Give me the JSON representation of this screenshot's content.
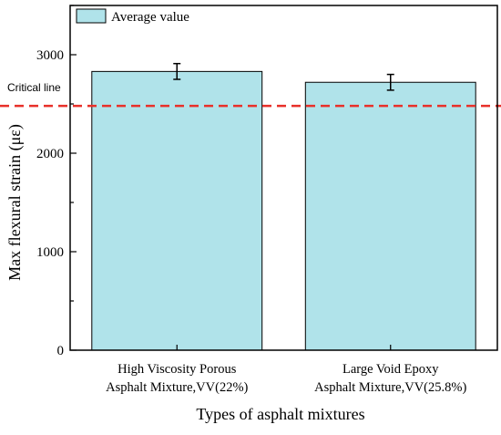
{
  "chart_data": {
    "type": "bar",
    "categories": [
      [
        "High Viscosity Porous",
        "Asphalt Mixture,VV(22%)"
      ],
      [
        "Large Void Epoxy",
        "Asphalt Mixture,VV(25.8%)"
      ]
    ],
    "series": [
      {
        "name": "Average value",
        "values": [
          2830,
          2720
        ],
        "error": [
          80,
          80
        ],
        "color": "#b0e3ea"
      }
    ],
    "xlabel": "Types of asphalt mixtures",
    "ylabel": "Max flexural strain (με)",
    "ylim": [
      0,
      3500
    ],
    "yticks": [
      0,
      1000,
      2000,
      3000
    ],
    "reference_line": {
      "label": "Critical line",
      "value": 2480,
      "color": "#e8302a",
      "style": "dashed"
    },
    "legend": {
      "position": "top-left"
    },
    "grid": false
  }
}
